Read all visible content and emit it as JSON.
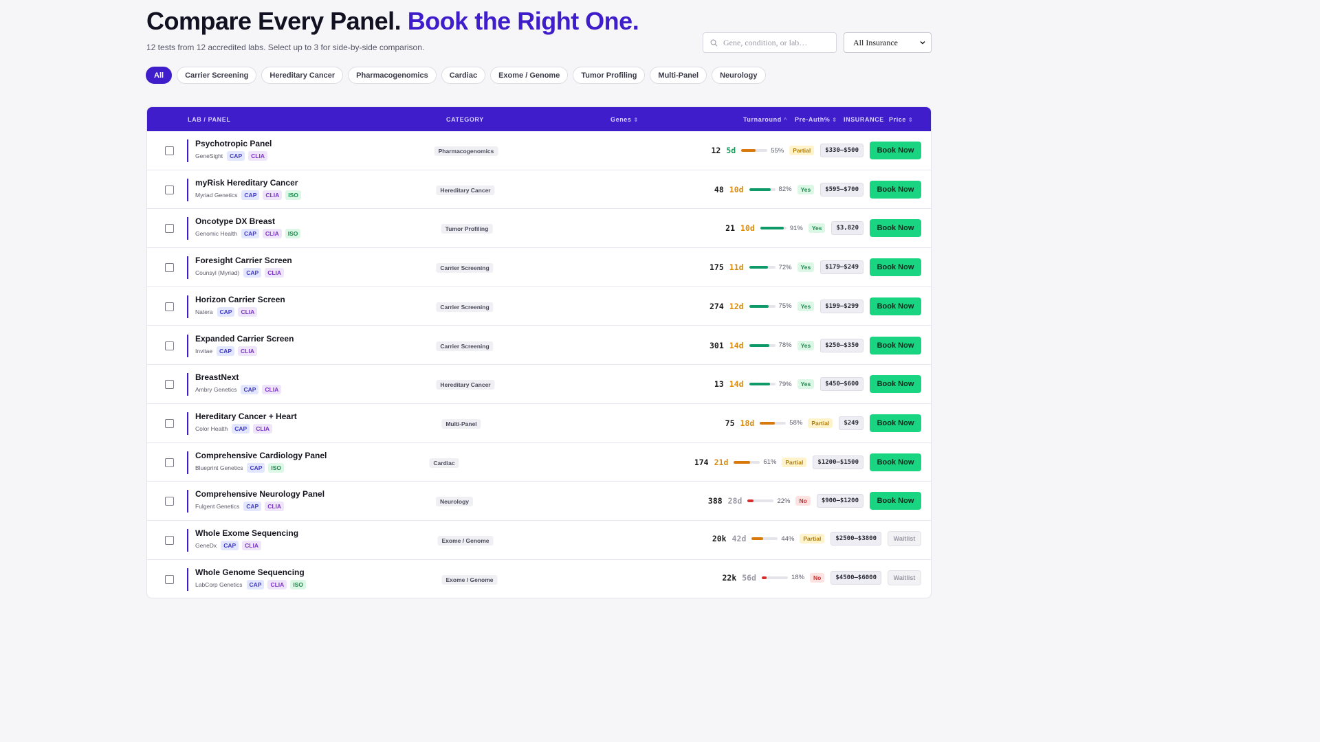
{
  "header": {
    "title_main": "Compare Every Panel.",
    "title_accent": "Book the Right One.",
    "subtitle": "12 tests from 12 accredited labs. Select up to 3 for side-by-side comparison."
  },
  "search": {
    "placeholder": "Gene, condition, or lab…",
    "icon": "search-icon"
  },
  "insurance_select": {
    "selected": "All Insurance"
  },
  "filters": [
    "All",
    "Carrier Screening",
    "Hereditary Cancer",
    "Pharmacogenomics",
    "Cardiac",
    "Exome / Genome",
    "Tumor Profiling",
    "Multi-Panel",
    "Neurology"
  ],
  "active_filter": "All",
  "table": {
    "columns": {
      "lab_panel": "LAB / PANEL",
      "category": "CATEGORY",
      "genes": "Genes",
      "turnaround": "Turnaround",
      "preauth": "Pre-Auth%",
      "insurance": "INSURANCE",
      "price": "Price"
    },
    "rows": [
      {
        "name": "Psychotropic Panel",
        "lab": "GeneSight",
        "badges": [
          "CAP",
          "CLIA"
        ],
        "category": "Pharmacogenomics",
        "genes": "12",
        "turnaround": "5d",
        "preauth": 55,
        "preauth_label": "55%",
        "insurance": "Partial",
        "price": "$330–$500",
        "action": "Book Now"
      },
      {
        "name": "myRisk Hereditary Cancer",
        "lab": "Myriad Genetics",
        "badges": [
          "CAP",
          "CLIA",
          "ISO"
        ],
        "category": "Hereditary Cancer",
        "genes": "48",
        "turnaround": "10d",
        "preauth": 82,
        "preauth_label": "82%",
        "insurance": "Yes",
        "price": "$595–$700",
        "action": "Book Now"
      },
      {
        "name": "Oncotype DX Breast",
        "lab": "Genomic Health",
        "badges": [
          "CAP",
          "CLIA",
          "ISO"
        ],
        "category": "Tumor Profiling",
        "genes": "21",
        "turnaround": "10d",
        "preauth": 91,
        "preauth_label": "91%",
        "insurance": "Yes",
        "price": "$3,820",
        "action": "Book Now"
      },
      {
        "name": "Foresight Carrier Screen",
        "lab": "Counsyl (Myriad)",
        "badges": [
          "CAP",
          "CLIA"
        ],
        "category": "Carrier Screening",
        "genes": "175",
        "turnaround": "11d",
        "preauth": 72,
        "preauth_label": "72%",
        "insurance": "Yes",
        "price": "$179–$249",
        "action": "Book Now"
      },
      {
        "name": "Horizon Carrier Screen",
        "lab": "Natera",
        "badges": [
          "CAP",
          "CLIA"
        ],
        "category": "Carrier Screening",
        "genes": "274",
        "turnaround": "12d",
        "preauth": 75,
        "preauth_label": "75%",
        "insurance": "Yes",
        "price": "$199–$299",
        "action": "Book Now"
      },
      {
        "name": "Expanded Carrier Screen",
        "lab": "Invitae",
        "badges": [
          "CAP",
          "CLIA"
        ],
        "category": "Carrier Screening",
        "genes": "301",
        "turnaround": "14d",
        "preauth": 78,
        "preauth_label": "78%",
        "insurance": "Yes",
        "price": "$250–$350",
        "action": "Book Now"
      },
      {
        "name": "BreastNext",
        "lab": "Ambry Genetics",
        "badges": [
          "CAP",
          "CLIA"
        ],
        "category": "Hereditary Cancer",
        "genes": "13",
        "turnaround": "14d",
        "preauth": 79,
        "preauth_label": "79%",
        "insurance": "Yes",
        "price": "$450–$600",
        "action": "Book Now"
      },
      {
        "name": "Hereditary Cancer + Heart",
        "lab": "Color Health",
        "badges": [
          "CAP",
          "CLIA"
        ],
        "category": "Multi-Panel",
        "genes": "75",
        "turnaround": "18d",
        "preauth": 58,
        "preauth_label": "58%",
        "insurance": "Partial",
        "price": "$249",
        "action": "Book Now"
      },
      {
        "name": "Comprehensive Cardiology Panel",
        "lab": "Blueprint Genetics",
        "badges": [
          "CAP",
          "ISO"
        ],
        "category": "Cardiac",
        "genes": "174",
        "turnaround": "21d",
        "preauth": 61,
        "preauth_label": "61%",
        "insurance": "Partial",
        "price": "$1200–$1500",
        "action": "Book Now"
      },
      {
        "name": "Comprehensive Neurology Panel",
        "lab": "Fulgent Genetics",
        "badges": [
          "CAP",
          "CLIA"
        ],
        "category": "Neurology",
        "genes": "388",
        "turnaround": "28d",
        "preauth": 22,
        "preauth_label": "22%",
        "insurance": "No",
        "price": "$900–$1200",
        "action": "Book Now"
      },
      {
        "name": "Whole Exome Sequencing",
        "lab": "GeneDx",
        "badges": [
          "CAP",
          "CLIA"
        ],
        "category": "Exome / Genome",
        "genes": "20k",
        "turnaround": "42d",
        "preauth": 44,
        "preauth_label": "44%",
        "insurance": "Partial",
        "price": "$2500–$3800",
        "action": "Waitlist"
      },
      {
        "name": "Whole Genome Sequencing",
        "lab": "LabCorp Genetics",
        "badges": [
          "CAP",
          "CLIA",
          "ISO"
        ],
        "category": "Exome / Genome",
        "genes": "22k",
        "turnaround": "56d",
        "preauth": 18,
        "preauth_label": "18%",
        "insurance": "No",
        "price": "$4500–$6000",
        "action": "Waitlist"
      }
    ]
  },
  "colors": {
    "brand": "#3f1dcb",
    "book": "#19d582",
    "tat_fast": "#1a9a5a",
    "tat_mid": "#d98a0c",
    "tat_slow": "#9a9aa6",
    "bar_high": "#0e9a68",
    "bar_mid": "#d9790c",
    "bar_low": "#d62e2e"
  }
}
